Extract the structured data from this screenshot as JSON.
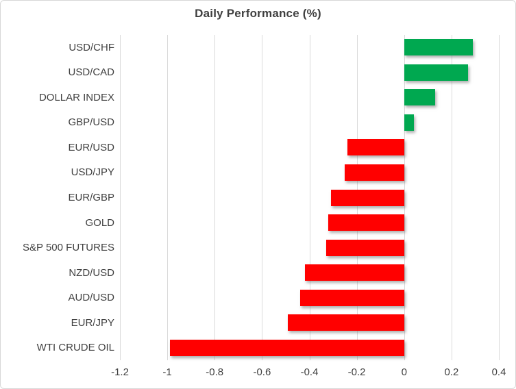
{
  "chart": {
    "title": "Daily Performance (%)"
  },
  "chart_data": {
    "type": "bar",
    "orientation": "horizontal",
    "title": "Daily Performance (%)",
    "categories": [
      "USD/CHF",
      "USD/CAD",
      "DOLLAR INDEX",
      "GBP/USD",
      "EUR/USD",
      "USD/JPY",
      "EUR/GBP",
      "GOLD",
      "S&P 500 FUTURES",
      "NZD/USD",
      "AUD/USD",
      "EUR/JPY",
      "WTI CRUDE OIL"
    ],
    "values": [
      0.29,
      0.27,
      0.13,
      0.04,
      -0.24,
      -0.25,
      -0.31,
      -0.32,
      -0.33,
      -0.42,
      -0.44,
      -0.49,
      -0.99
    ],
    "xlabel": "",
    "ylabel": "",
    "xlim": [
      -1.2,
      0.4
    ],
    "xticks": [
      -1.2,
      -1,
      -0.8,
      -0.6,
      -0.4,
      -0.2,
      0,
      0.2,
      0.4
    ],
    "xtick_labels": [
      "-1.2",
      "-1",
      "-0.8",
      "-0.6",
      "-0.4",
      "-0.2",
      "0",
      "0.2",
      "0.4"
    ],
    "grid": true,
    "legend": false,
    "colors": {
      "positive": "#00A850",
      "negative": "#FF0000",
      "gridline": "#D9D9D9",
      "text": "#404040"
    }
  }
}
